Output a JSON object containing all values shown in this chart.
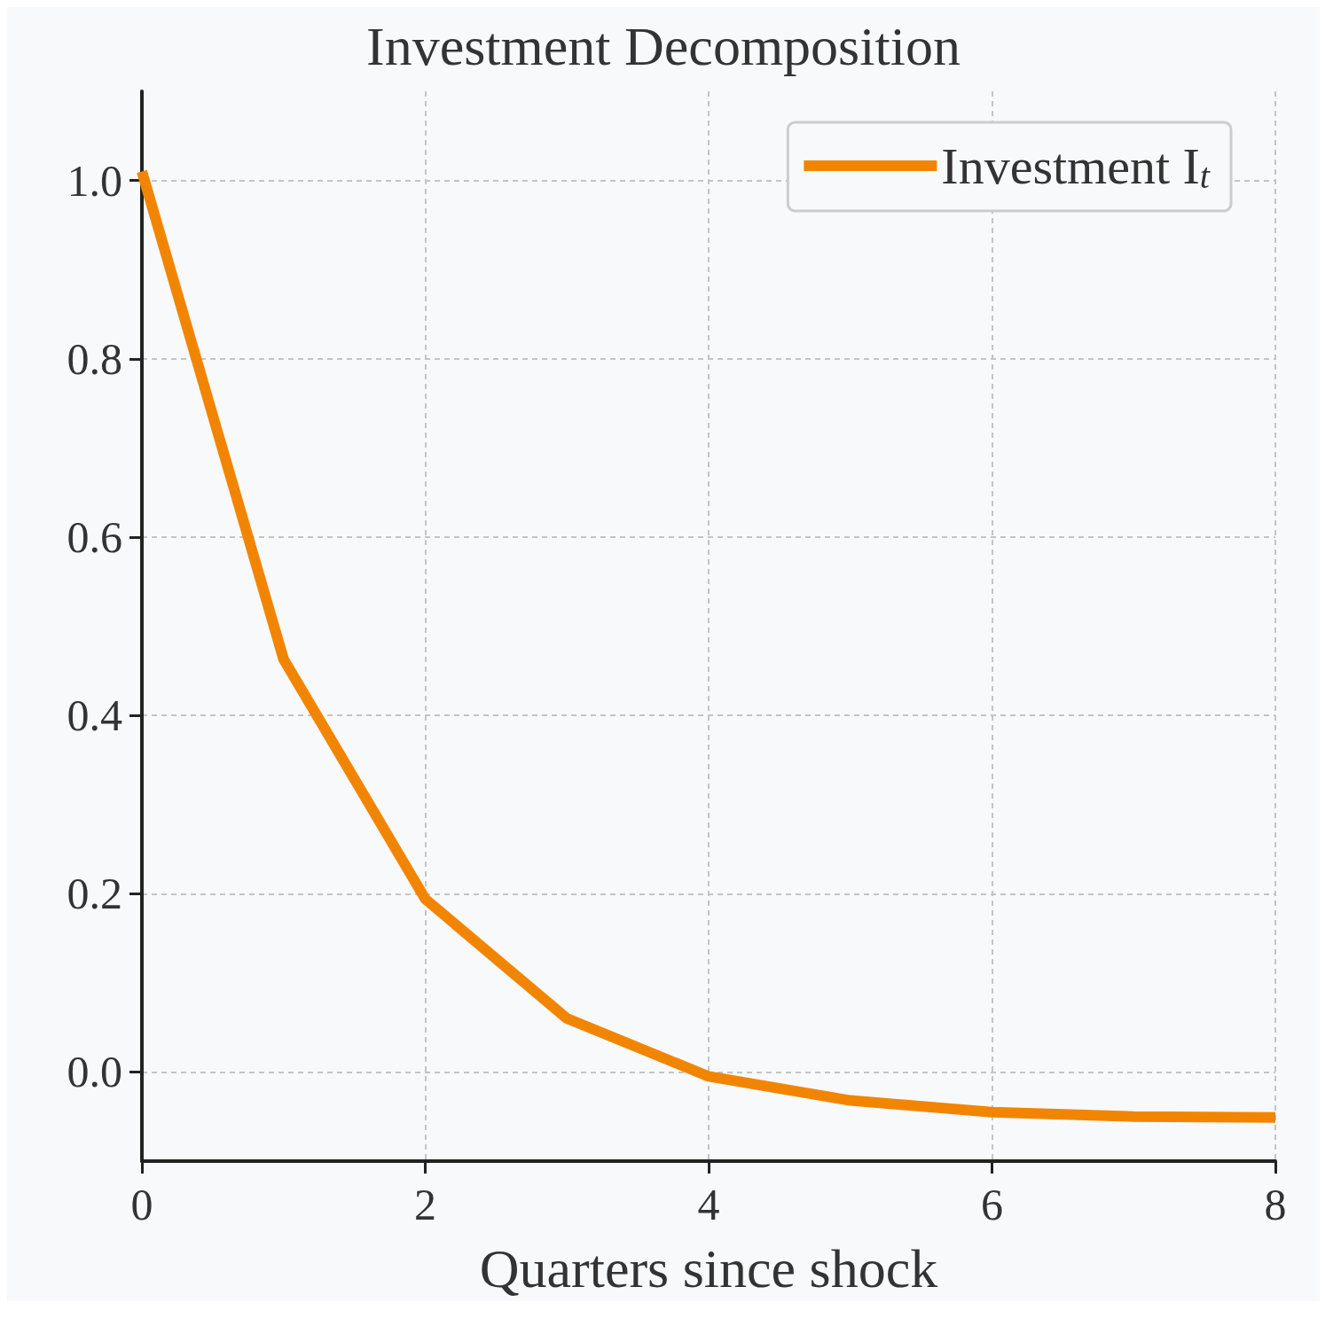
{
  "chart_data": {
    "type": "line",
    "title": "Investment Decomposition",
    "xlabel": "Quarters since shock",
    "x": [
      0,
      1,
      2,
      3,
      4,
      5,
      6,
      7,
      8
    ],
    "series": [
      {
        "name": "Investment I$_{t}$",
        "color": "#f28500",
        "values": [
          1.01,
          0.463,
          0.194,
          0.06,
          -0.005,
          -0.032,
          -0.045,
          -0.05,
          -0.051
        ]
      }
    ],
    "xlim": [
      0,
      8
    ],
    "xticks": [
      0,
      2,
      4,
      6,
      8
    ],
    "ylim": [
      -0.1,
      1.1
    ],
    "yticks": [
      {
        "value": 0,
        "label": "0.0"
      },
      0.2,
      0.4,
      0.6,
      0.8,
      {
        "value": 1,
        "label": "1.0"
      }
    ],
    "grid": true,
    "legend": "top right",
    "marker": "none",
    "line_style": "solid"
  }
}
